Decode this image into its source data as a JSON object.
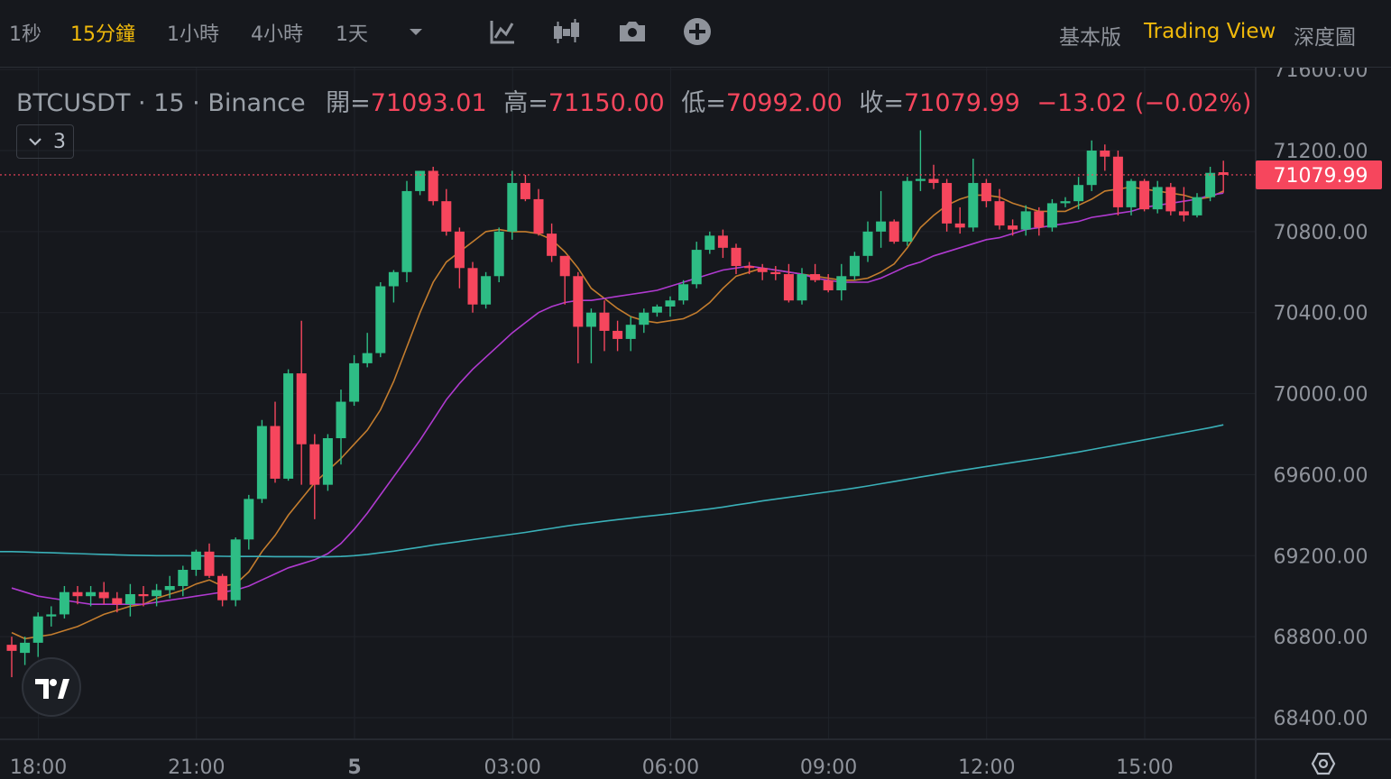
{
  "toolbar": {
    "timeframes": [
      "1秒",
      "15分鐘",
      "1小時",
      "4小時",
      "1天"
    ],
    "active_timeframe": "15分鐘",
    "views": [
      "基本版",
      "Trading View",
      "深度圖"
    ],
    "active_view": "Trading View",
    "icons": [
      "chevron-down-icon",
      "indicator-icon",
      "candle-type-icon",
      "camera-icon",
      "add-circle-icon"
    ]
  },
  "legend": {
    "symbol": "BTCUSDT · 15 · Binance",
    "open_label": "開=",
    "open": "71093.01",
    "high_label": "高=",
    "high": "71150.00",
    "low_label": "低=",
    "low": "70992.00",
    "close_label": "收=",
    "close": "71079.99",
    "change": "−13.02 (−0.02%)"
  },
  "studies_toggle": {
    "count": "3",
    "icon": "chevron-down-icon"
  },
  "colors": {
    "up": "#2ebd85",
    "down": "#f6465d",
    "ma_fast": "#c47d2e",
    "ma_mid": "#b03ad0",
    "ma_slow": "#3ab0b8",
    "accent": "#f0b90b"
  },
  "chart_data": {
    "type": "candlestick",
    "symbol": "BTCUSDT",
    "interval": "15",
    "last_price": "71079.99",
    "y_ticks": [
      "71600.00",
      "71200.00",
      "70800.00",
      "70400.00",
      "70000.00",
      "69600.00",
      "69200.00",
      "68800.00",
      "68400.00"
    ],
    "x_ticks": [
      "18:00",
      "21:00",
      "5",
      "03:00",
      "06:00",
      "09:00",
      "12:00",
      "15:00"
    ],
    "ylim": [
      68300,
      71650
    ],
    "candles": [
      [
        68760,
        68800,
        68600,
        68730
      ],
      [
        68720,
        68800,
        68660,
        68770
      ],
      [
        68770,
        68920,
        68700,
        68900
      ],
      [
        68900,
        68950,
        68850,
        68910
      ],
      [
        68910,
        69050,
        68890,
        69020
      ],
      [
        69020,
        69050,
        68960,
        69000
      ],
      [
        69000,
        69050,
        68950,
        69020
      ],
      [
        69020,
        69070,
        68960,
        68990
      ],
      [
        68990,
        69020,
        68920,
        68960
      ],
      [
        68960,
        69060,
        68900,
        69010
      ],
      [
        69010,
        69050,
        68950,
        69000
      ],
      [
        69000,
        69060,
        68950,
        69030
      ],
      [
        69030,
        69100,
        68990,
        69050
      ],
      [
        69050,
        69150,
        69000,
        69130
      ],
      [
        69130,
        69230,
        69100,
        69220
      ],
      [
        69220,
        69260,
        69090,
        69100
      ],
      [
        69100,
        69110,
        68950,
        68980
      ],
      [
        68980,
        69290,
        68950,
        69280
      ],
      [
        69280,
        69500,
        69230,
        69480
      ],
      [
        69480,
        69870,
        69460,
        69840
      ],
      [
        69840,
        69960,
        69560,
        69580
      ],
      [
        69580,
        70120,
        69570,
        70100
      ],
      [
        70100,
        70360,
        69550,
        69750
      ],
      [
        69750,
        69800,
        69380,
        69550
      ],
      [
        69550,
        69800,
        69520,
        69780
      ],
      [
        69780,
        70020,
        69650,
        69960
      ],
      [
        69960,
        70190,
        69940,
        70150
      ],
      [
        70150,
        70300,
        70130,
        70200
      ],
      [
        70200,
        70550,
        70180,
        70530
      ],
      [
        70530,
        70610,
        70450,
        70600
      ],
      [
        70600,
        71050,
        70550,
        71000
      ],
      [
        71000,
        71100,
        70980,
        71100
      ],
      [
        71100,
        71120,
        70930,
        70950
      ],
      [
        70950,
        71010,
        70780,
        70800
      ],
      [
        70800,
        70820,
        70520,
        70620
      ],
      [
        70620,
        70650,
        70400,
        70440
      ],
      [
        70440,
        70600,
        70420,
        70580
      ],
      [
        70580,
        70820,
        70550,
        70800
      ],
      [
        70800,
        71100,
        70760,
        71040
      ],
      [
        71040,
        71080,
        70950,
        70960
      ],
      [
        70960,
        71010,
        70780,
        70790
      ],
      [
        70790,
        70840,
        70650,
        70680
      ],
      [
        70680,
        70680,
        70440,
        70580
      ],
      [
        70580,
        70600,
        70150,
        70330
      ],
      [
        70330,
        70420,
        70150,
        70400
      ],
      [
        70400,
        70460,
        70210,
        70310
      ],
      [
        70310,
        70360,
        70210,
        70270
      ],
      [
        70270,
        70380,
        70210,
        70340
      ],
      [
        70340,
        70420,
        70300,
        70400
      ],
      [
        70400,
        70440,
        70380,
        70430
      ],
      [
        70430,
        70480,
        70380,
        70460
      ],
      [
        70460,
        70560,
        70440,
        70540
      ],
      [
        70540,
        70750,
        70520,
        70710
      ],
      [
        70710,
        70800,
        70690,
        70780
      ],
      [
        70780,
        70810,
        70670,
        70720
      ],
      [
        70720,
        70740,
        70590,
        70630
      ],
      [
        70630,
        70650,
        70590,
        70620
      ],
      [
        70620,
        70640,
        70560,
        70600
      ],
      [
        70600,
        70630,
        70560,
        70590
      ],
      [
        70590,
        70640,
        70450,
        70460
      ],
      [
        70460,
        70620,
        70440,
        70590
      ],
      [
        70590,
        70640,
        70550,
        70560
      ],
      [
        70560,
        70590,
        70500,
        70510
      ],
      [
        70510,
        70640,
        70460,
        70580
      ],
      [
        70580,
        70700,
        70560,
        70680
      ],
      [
        70680,
        70850,
        70650,
        70800
      ],
      [
        70800,
        71000,
        70720,
        70850
      ],
      [
        70850,
        70860,
        70740,
        70750
      ],
      [
        70750,
        71070,
        70730,
        71050
      ],
      [
        71050,
        71300,
        71000,
        71060
      ],
      [
        71060,
        71130,
        71010,
        71040
      ],
      [
        71040,
        71060,
        70800,
        70840
      ],
      [
        70840,
        70920,
        70790,
        70820
      ],
      [
        70820,
        71160,
        70800,
        71040
      ],
      [
        71040,
        71060,
        70920,
        70950
      ],
      [
        70950,
        71010,
        70810,
        70830
      ],
      [
        70830,
        70860,
        70780,
        70810
      ],
      [
        70810,
        70930,
        70780,
        70900
      ],
      [
        70900,
        70920,
        70780,
        70820
      ],
      [
        70820,
        70960,
        70800,
        70940
      ],
      [
        70940,
        70970,
        70920,
        70950
      ],
      [
        70950,
        71070,
        70910,
        71030
      ],
      [
        71030,
        71250,
        71000,
        71200
      ],
      [
        71200,
        71230,
        71100,
        71170
      ],
      [
        71170,
        71200,
        70880,
        70920
      ],
      [
        70920,
        71060,
        70880,
        71050
      ],
      [
        71050,
        71060,
        70900,
        70910
      ],
      [
        70910,
        71050,
        70890,
        71020
      ],
      [
        71020,
        71040,
        70880,
        70900
      ],
      [
        70900,
        71020,
        70850,
        70880
      ],
      [
        70880,
        70990,
        70870,
        70970
      ],
      [
        70970,
        71120,
        70950,
        71090
      ],
      [
        71093.01,
        71150,
        70992,
        71079.99
      ]
    ],
    "moving_averages": [
      {
        "color": "#c47d2e",
        "values": [
          68820,
          68790,
          68800,
          68810,
          68830,
          68850,
          68880,
          68910,
          68930,
          68950,
          68960,
          68990,
          69010,
          69030,
          69060,
          69080,
          69050,
          69060,
          69120,
          69220,
          69300,
          69400,
          69480,
          69560,
          69620,
          69680,
          69750,
          69820,
          69920,
          70060,
          70230,
          70400,
          70550,
          70650,
          70700,
          70750,
          70800,
          70810,
          70800,
          70800,
          70790,
          70760,
          70700,
          70620,
          70520,
          70470,
          70420,
          70380,
          70360,
          70350,
          70360,
          70370,
          70400,
          70450,
          70520,
          70580,
          70600,
          70620,
          70610,
          70600,
          70590,
          70580,
          70570,
          70560,
          70560,
          70570,
          70600,
          70640,
          70720,
          70820,
          70880,
          70930,
          70960,
          70980,
          70980,
          70970,
          70940,
          70920,
          70900,
          70900,
          70900,
          70930,
          70960,
          71000,
          71010,
          71020,
          71010,
          71000,
          70990,
          70980,
          70960,
          70970,
          71000
        ]
      },
      {
        "color": "#b03ad0",
        "values": [
          69040,
          69020,
          69000,
          68990,
          68980,
          68970,
          68960,
          68960,
          68960,
          68960,
          68960,
          68970,
          68980,
          68990,
          69000,
          69010,
          69020,
          69030,
          69050,
          69080,
          69110,
          69140,
          69160,
          69180,
          69210,
          69260,
          69330,
          69410,
          69500,
          69590,
          69680,
          69770,
          69870,
          69970,
          70050,
          70120,
          70180,
          70240,
          70300,
          70350,
          70400,
          70430,
          70450,
          70460,
          70460,
          70470,
          70480,
          70490,
          70500,
          70510,
          70530,
          70550,
          70570,
          70590,
          70610,
          70620,
          70630,
          70620,
          70610,
          70600,
          70590,
          70570,
          70560,
          70550,
          70550,
          70550,
          70570,
          70600,
          70630,
          70650,
          70680,
          70700,
          70720,
          70740,
          70760,
          70770,
          70790,
          70810,
          70820,
          70830,
          70840,
          70850,
          70870,
          70880,
          70890,
          70900,
          70920,
          70930,
          70940,
          70950,
          70960,
          70980,
          70990
        ]
      },
      {
        "color": "#3ab0b8",
        "values": [
          69220,
          69218,
          69216,
          69214,
          69212,
          69210,
          69208,
          69206,
          69204,
          69202,
          69201,
          69200,
          69200,
          69200,
          69199,
          69198,
          69197,
          69196,
          69196,
          69196,
          69195,
          69195,
          69195,
          69194,
          69194,
          69196,
          69200,
          69206,
          69214,
          69222,
          69232,
          69242,
          69252,
          69261,
          69270,
          69279,
          69288,
          69297,
          69306,
          69315,
          69325,
          69335,
          69345,
          69354,
          69362,
          69370,
          69378,
          69385,
          69393,
          69400,
          69407,
          69415,
          69423,
          69431,
          69440,
          69450,
          69460,
          69470,
          69479,
          69488,
          69497,
          69506,
          69515,
          69524,
          69534,
          69544,
          69555,
          69566,
          69577,
          69588,
          69599,
          69610,
          69620,
          69630,
          69640,
          69650,
          69660,
          69670,
          69680,
          69690,
          69701,
          69712,
          69724,
          69736,
          69748,
          69760,
          69772,
          69784,
          69796,
          69808,
          69820,
          69832,
          69846
        ]
      }
    ]
  }
}
